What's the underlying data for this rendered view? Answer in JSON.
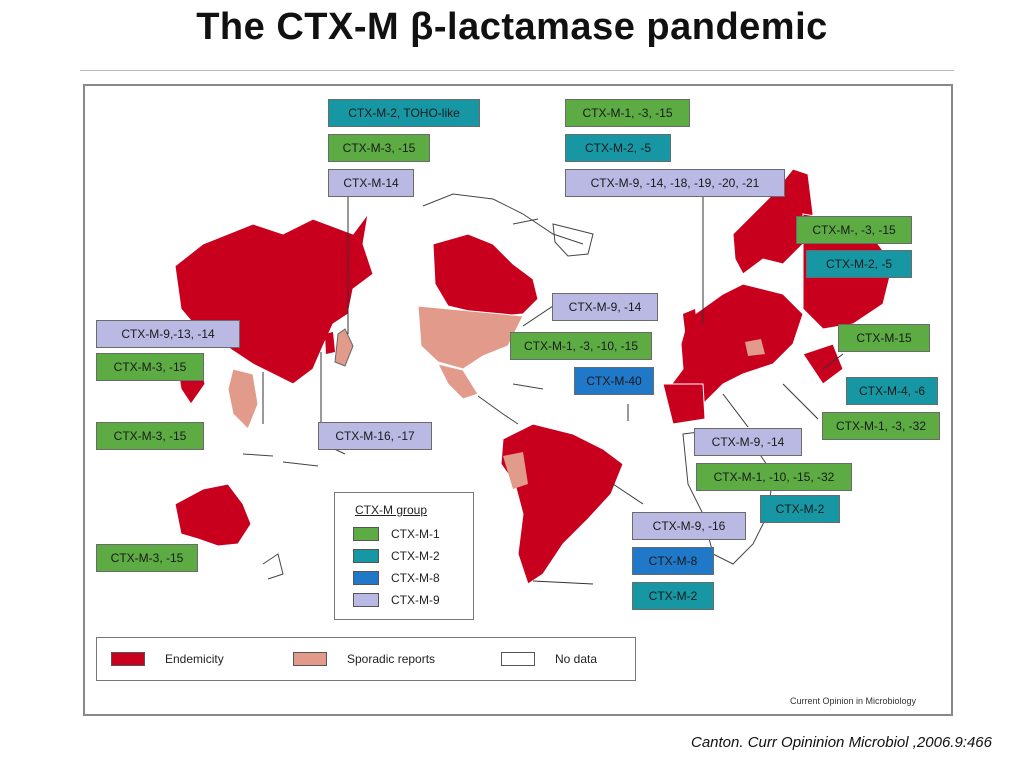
{
  "title": "The CTX-M β-lactamase pandemic",
  "citation": "Canton. Curr Opininion Microbiol ,2006.9:466",
  "figure_source": "Current Opinion in Microbiology",
  "colors": {
    "endemicity": "#c8001e",
    "sporadic": "#e29a8a",
    "no_data": "#ffffff",
    "ctx_m_1": "#5cab43",
    "ctx_m_2": "#1797a4",
    "ctx_m_8": "#1f78c8",
    "ctx_m_9": "#b9b9e3"
  },
  "labels": [
    {
      "text": "CTX-M-2, TOHO-like",
      "group": "c2"
    },
    {
      "text": "CTX-M-3, -15",
      "group": "c1"
    },
    {
      "text": "CTX-M-14",
      "group": "c9"
    },
    {
      "text": "CTX-M-9,-13, -14",
      "group": "c9"
    },
    {
      "text": "CTX-M-3, -15",
      "group": "c1"
    },
    {
      "text": "CTX-M-3, -15",
      "group": "c1"
    },
    {
      "text": "CTX-M-16, -17",
      "group": "c9"
    },
    {
      "text": "CTX-M-3, -15",
      "group": "c1"
    },
    {
      "text": "CTX-M-1, -3, -15",
      "group": "c1"
    },
    {
      "text": "CTX-M-2, -5",
      "group": "c2"
    },
    {
      "text": "CTX-M-9, -14, -18, -19, -20, -21",
      "group": "c9"
    },
    {
      "text": "CTX-M-9, -14",
      "group": "c9"
    },
    {
      "text": "CTX-M-1, -3, -10, -15",
      "group": "c1"
    },
    {
      "text": "CTX-M-40",
      "group": "c8"
    },
    {
      "text": "CTX-M-, -3, -15",
      "group": "c1"
    },
    {
      "text": "CTX-M-2, -5",
      "group": "c2"
    },
    {
      "text": "CTX-M-15",
      "group": "c1"
    },
    {
      "text": "CTX-M-4, -6",
      "group": "c2"
    },
    {
      "text": "CTX-M-1, -3, -32",
      "group": "c1"
    },
    {
      "text": "CTX-M-9, -14",
      "group": "c9"
    },
    {
      "text": "CTX-M-1, -10, -15, -32",
      "group": "c1"
    },
    {
      "text": "CTX-M-2",
      "group": "c2"
    },
    {
      "text": "CTX-M-9, -16",
      "group": "c9"
    },
    {
      "text": "CTX-M-8",
      "group": "c8"
    },
    {
      "text": "CTX-M-2",
      "group": "c2"
    }
  ],
  "group_legend": {
    "title": "CTX-M group",
    "items": [
      {
        "label": "CTX-M-1",
        "color": "#5cab43"
      },
      {
        "label": "CTX-M-2",
        "color": "#1797a4"
      },
      {
        "label": "CTX-M-8",
        "color": "#1f78c8"
      },
      {
        "label": "CTX-M-9",
        "color": "#b9b9e3"
      }
    ]
  },
  "status_legend": {
    "items": [
      {
        "label": "Endemicity",
        "color": "#c8001e"
      },
      {
        "label": "Sporadic reports",
        "color": "#e29a8a"
      },
      {
        "label": "No data",
        "color": "#ffffff"
      }
    ]
  }
}
